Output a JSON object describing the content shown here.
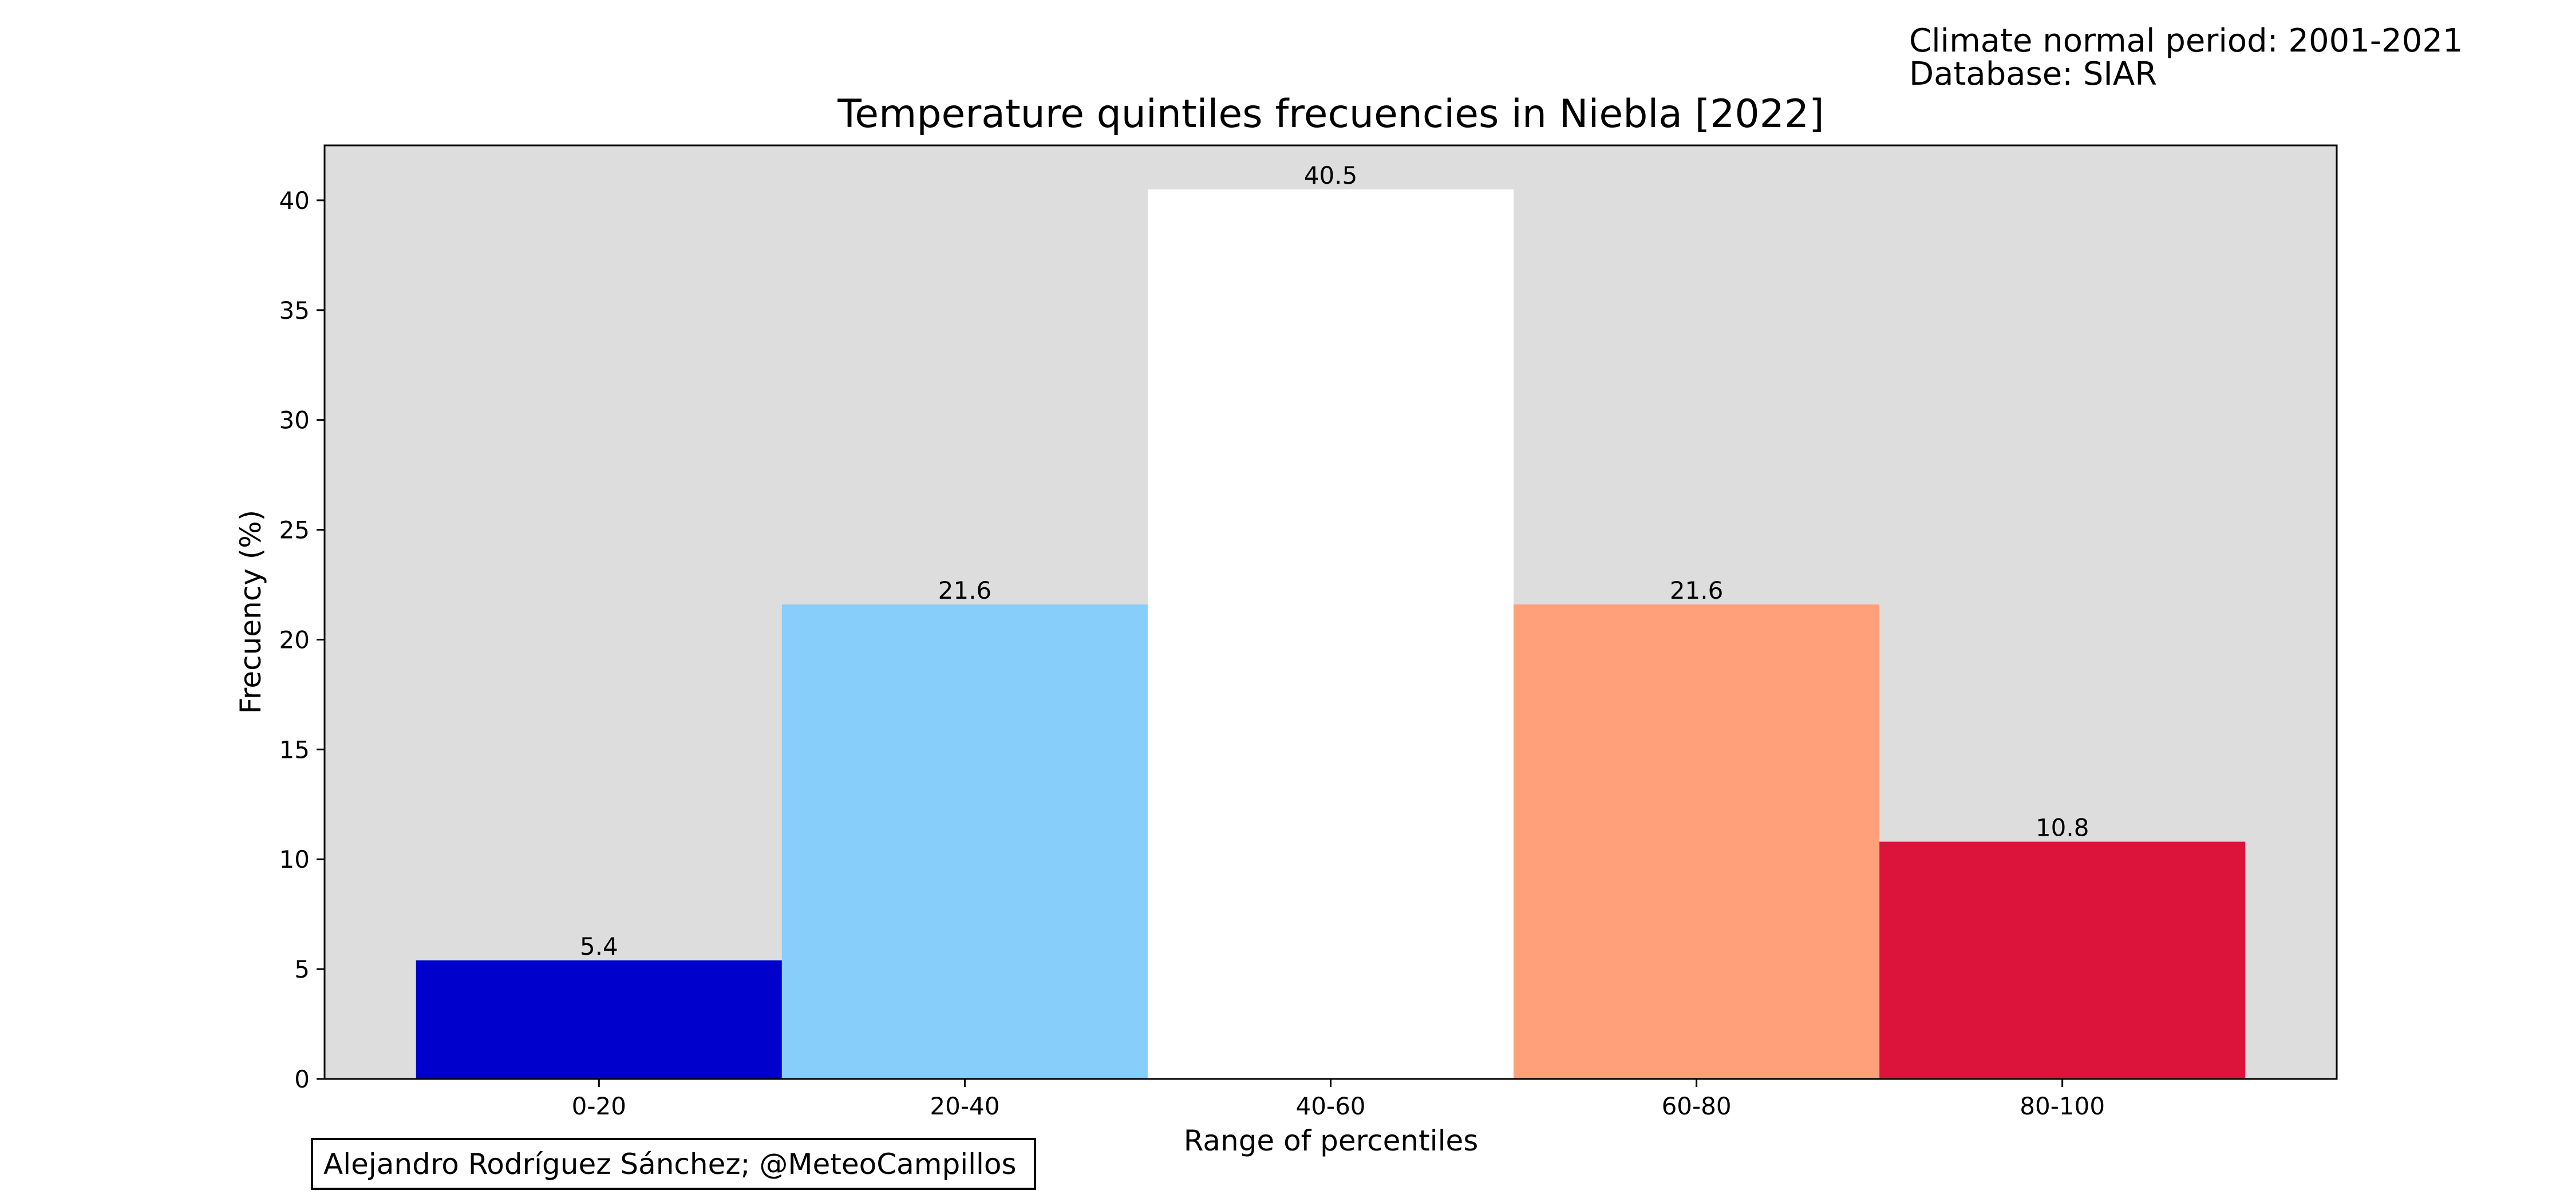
{
  "header": {
    "normal_period": "Climate normal period: 2001-2021",
    "database": "Database: SIAR"
  },
  "credit": "Alejandro Rodríguez Sánchez; @MeteoCampillos",
  "chart_data": {
    "type": "bar",
    "title": "Temperature quintiles frecuencies in Niebla [2022]",
    "xlabel": "Range of percentiles",
    "ylabel": "Frecuency (%)",
    "categories": [
      "0-20",
      "20-40",
      "40-60",
      "60-80",
      "80-100"
    ],
    "values": [
      5.4,
      21.6,
      40.5,
      21.6,
      10.8
    ],
    "value_labels": [
      "5.4",
      "21.6",
      "40.5",
      "21.6",
      "10.8"
    ],
    "bar_colors": [
      "#0000cd",
      "#87cefa",
      "#ffffff",
      "#ffa07a",
      "#dc143c"
    ],
    "ylim": [
      0,
      42.5
    ],
    "yticks": [
      0,
      5,
      10,
      15,
      20,
      25,
      30,
      35,
      40
    ],
    "background_color": "#dddddd",
    "grid": false,
    "legend": "none"
  }
}
